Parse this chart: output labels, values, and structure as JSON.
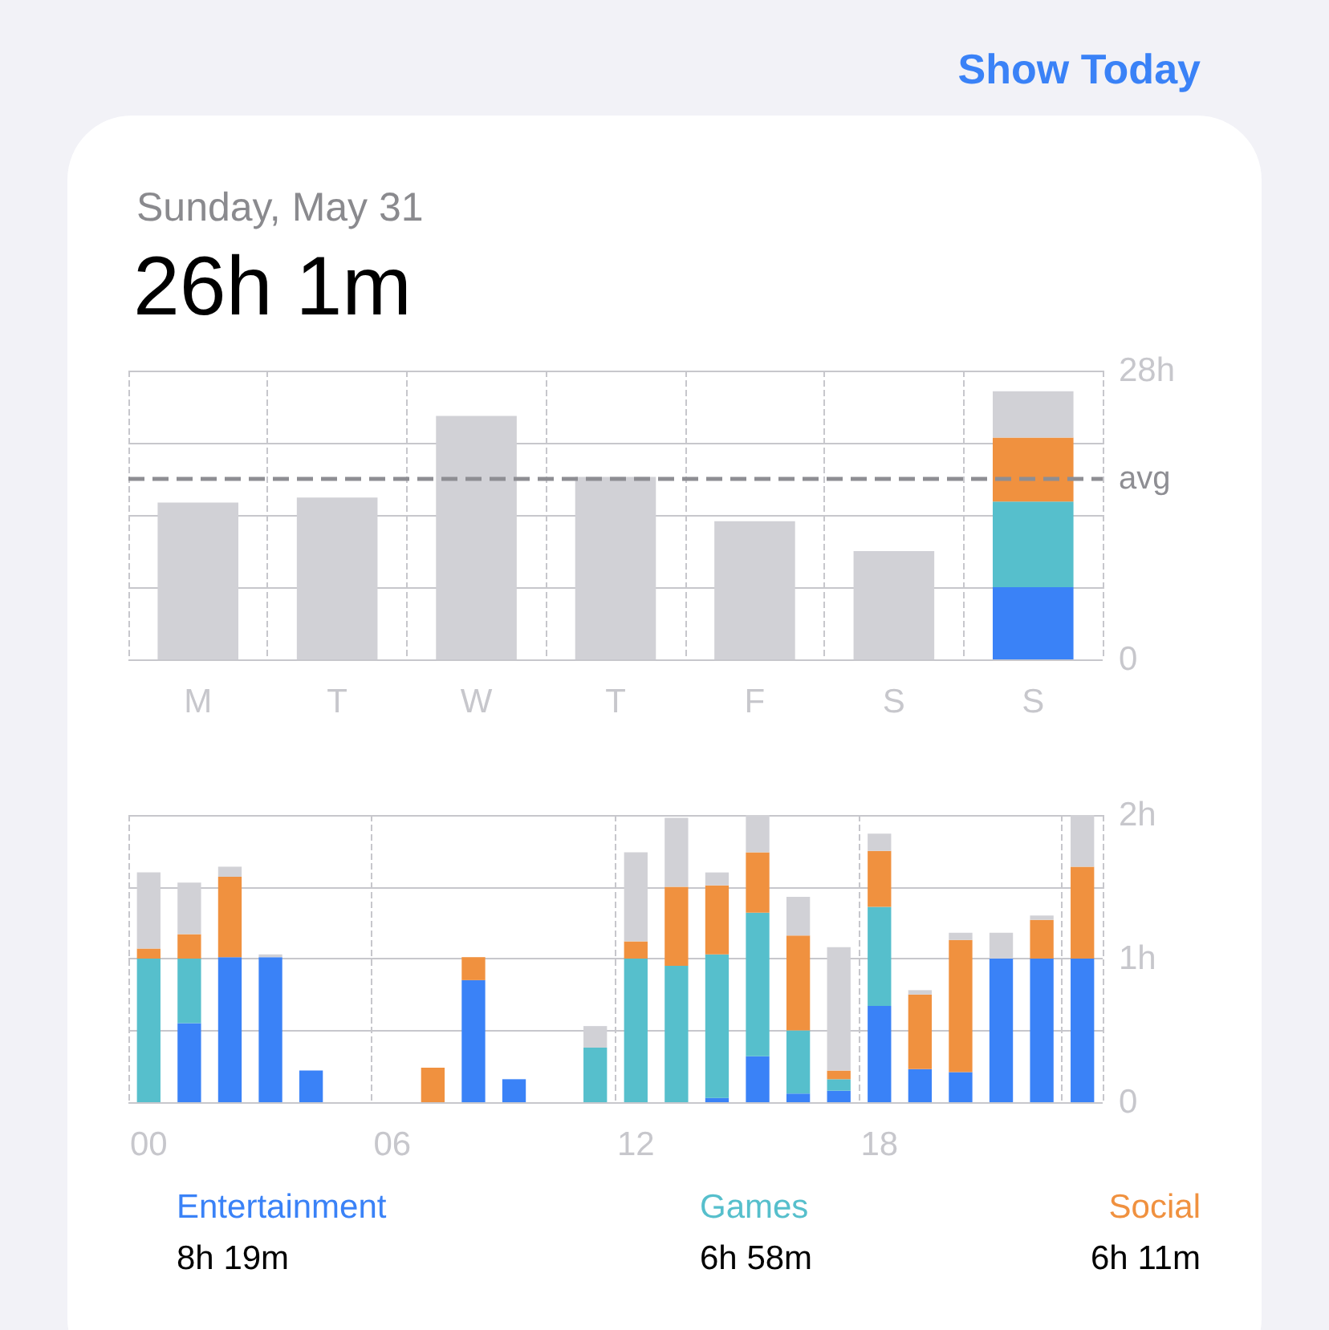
{
  "chart_data": [
    {
      "type": "bar",
      "stacked": true,
      "title": "26h 1m",
      "subtitle": "Sunday, May 31",
      "annotations": [
        "Show Today"
      ],
      "categories": [
        "M",
        "T",
        "W",
        "T",
        "F",
        "S",
        "S"
      ],
      "series": [
        {
          "color": "#3a82f7",
          "values": [
            null,
            null,
            null,
            null,
            null,
            null,
            7.0
          ]
        },
        {
          "color": "#56bfcc",
          "values": [
            null,
            null,
            null,
            null,
            null,
            null,
            8.3
          ]
        },
        {
          "color": "#f0913f",
          "values": [
            null,
            null,
            null,
            null,
            null,
            null,
            6.2
          ]
        },
        {
          "color": "#d1d1d6",
          "values": [
            15.2,
            15.7,
            23.6,
            17.7,
            13.4,
            10.5,
            4.5
          ]
        }
      ],
      "ylim": [
        0,
        28
      ],
      "yticks": [
        {
          "value": 0,
          "label": "0"
        },
        {
          "value": 7,
          "label": null
        },
        {
          "value": 14,
          "label": null
        },
        {
          "value": 21,
          "label": null
        },
        {
          "value": 28,
          "label": "28h"
        }
      ],
      "grid": true,
      "ref_lines": [
        {
          "axis": "y",
          "value": 17.5,
          "label": "avg",
          "color": "#8e8e93",
          "line_style": "dashed"
        }
      ]
    },
    {
      "type": "bar",
      "stacked": true,
      "legend": "bottom",
      "annotations": [
        "8h 19m",
        "6h 58m",
        "6h 11m"
      ],
      "categories": [
        "00",
        null,
        null,
        null,
        null,
        null,
        "06",
        null,
        null,
        null,
        null,
        null,
        "12",
        null,
        null,
        null,
        null,
        null,
        "18",
        null,
        null,
        null,
        null,
        null
      ],
      "series": [
        {
          "name": "Entertainment",
          "color": "#3a82f7",
          "values": [
            0,
            0.55,
            1.01,
            1.01,
            0.22,
            0,
            0,
            0,
            0.85,
            0.16,
            0,
            0,
            0,
            0,
            0.03,
            0.32,
            0.06,
            0.08,
            0.67,
            0.23,
            0.21,
            1.0,
            1.0,
            1.0
          ]
        },
        {
          "name": "Games",
          "color": "#56bfcc",
          "values": [
            1.0,
            0.45,
            0,
            0,
            0,
            0,
            0,
            0,
            0,
            0,
            0,
            0.38,
            1.0,
            0.95,
            1.0,
            1.0,
            0.44,
            0.08,
            0.69,
            0,
            0,
            0,
            0,
            0
          ]
        },
        {
          "name": "Social",
          "color": "#f0913f",
          "values": [
            0.07,
            0.17,
            0.56,
            0,
            0,
            0,
            0,
            0.24,
            0.16,
            0,
            0,
            0,
            0.12,
            0.55,
            0.48,
            0.42,
            0.66,
            0.06,
            0.39,
            0.52,
            0.92,
            0,
            0.27,
            0.64
          ]
        },
        {
          "color": "#d1d1d6",
          "values": [
            0.53,
            0.36,
            0.07,
            0.02,
            0,
            0,
            0,
            0,
            0,
            0,
            0,
            0.15,
            0.62,
            0.48,
            0.09,
            0.26,
            0.27,
            0.86,
            0.12,
            0.03,
            0.05,
            0.18,
            0.03,
            0.36
          ]
        }
      ],
      "ylim": [
        0,
        2
      ],
      "yticks": [
        {
          "value": 0,
          "label": "0"
        },
        {
          "value": 0.5,
          "label": null
        },
        {
          "value": 1,
          "label": "1h"
        },
        {
          "value": 1.5,
          "label": null
        },
        {
          "value": 2,
          "label": "2h"
        }
      ],
      "grid": true
    }
  ]
}
